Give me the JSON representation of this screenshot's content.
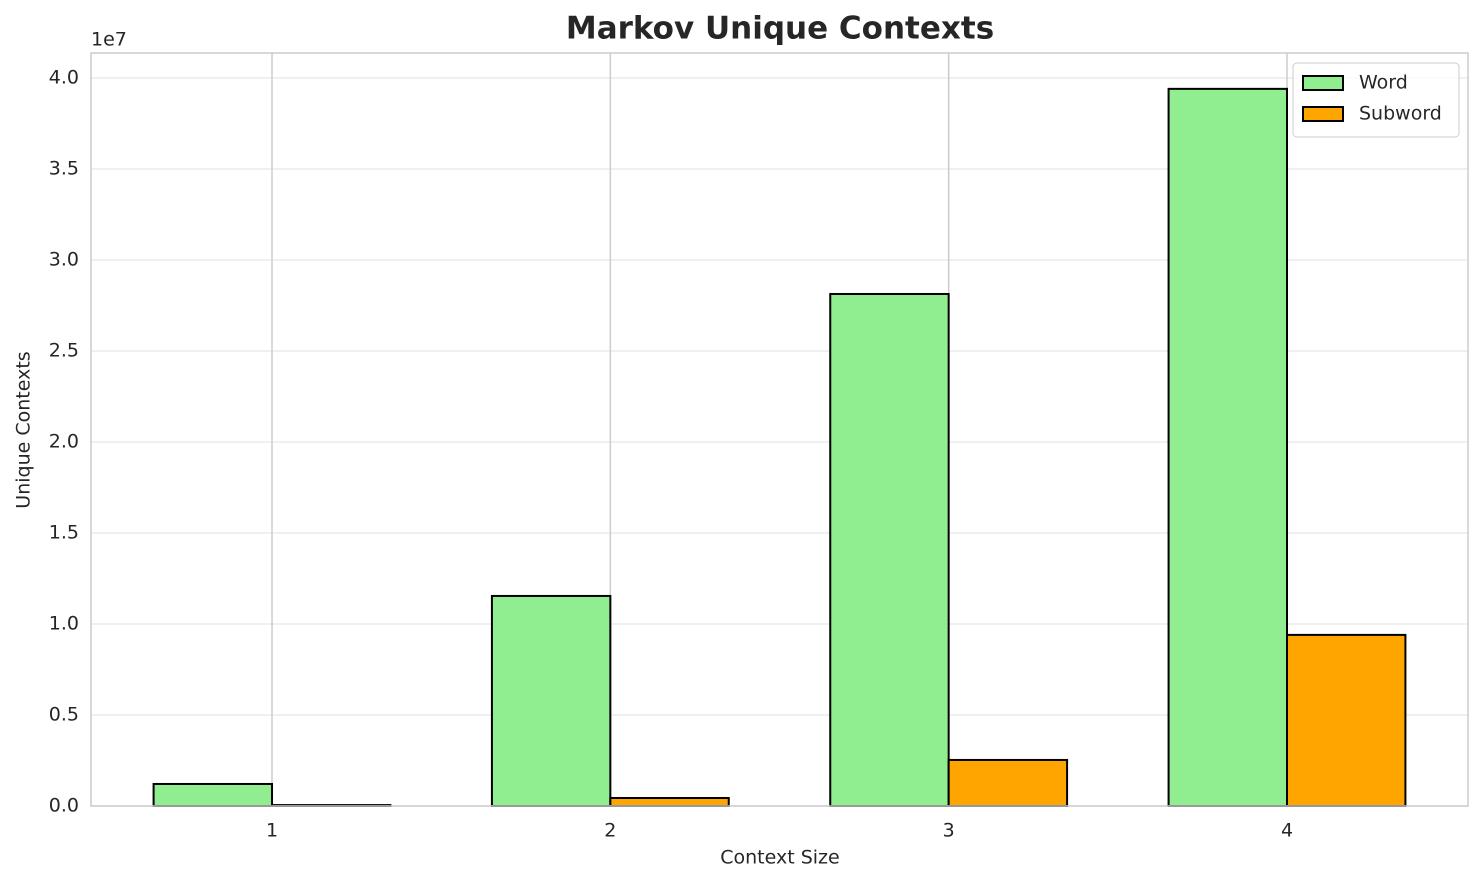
{
  "chart_data": {
    "type": "bar",
    "title": "Markov Unique Contexts",
    "x_label": "Context Size",
    "y_label": "Unique Contexts",
    "y_offset_label": "1e7",
    "categories": [
      "1",
      "2",
      "3",
      "4"
    ],
    "series": [
      {
        "name": "Word",
        "color": "#90ee90",
        "values": [
          1210000,
          11540000,
          28130000,
          39400000
        ]
      },
      {
        "name": "Subword",
        "color": "#ffa500",
        "values": [
          50000,
          440000,
          2530000,
          9400000
        ]
      }
    ],
    "ylim": [
      0,
      41370000
    ],
    "yticks": [
      {
        "value": 0,
        "label": "0.0"
      },
      {
        "value": 5000000,
        "label": "0.5"
      },
      {
        "value": 10000000,
        "label": "1.0"
      },
      {
        "value": 15000000,
        "label": "1.5"
      },
      {
        "value": 20000000,
        "label": "2.0"
      },
      {
        "value": 25000000,
        "label": "2.5"
      },
      {
        "value": 30000000,
        "label": "3.0"
      },
      {
        "value": 35000000,
        "label": "3.5"
      },
      {
        "value": 40000000,
        "label": "4.0"
      }
    ],
    "grid": true,
    "legend": "upper right"
  }
}
